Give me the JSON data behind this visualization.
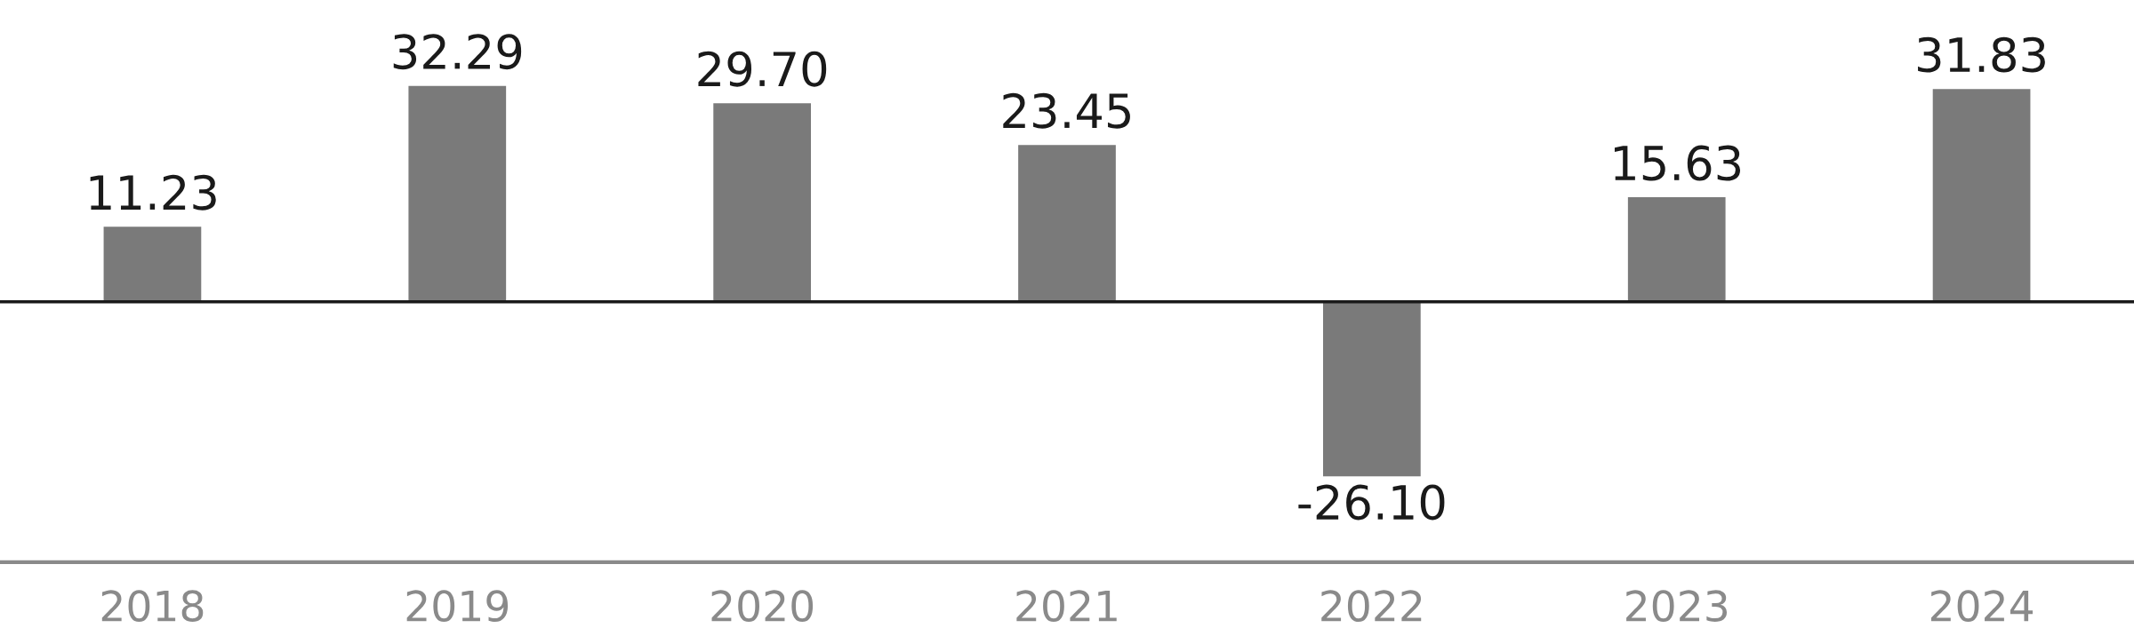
{
  "chart_data": {
    "type": "bar",
    "categories": [
      "2018",
      "2019",
      "2020",
      "2021",
      "2022",
      "2023",
      "2024"
    ],
    "values": [
      11.23,
      32.29,
      29.7,
      23.45,
      -26.1,
      15.63,
      31.83
    ],
    "value_labels": [
      "11.23",
      "32.29",
      "29.70",
      "23.45",
      "-26.10",
      "15.63",
      "31.83"
    ],
    "color": "#7a7a7a",
    "ref_lines": [
      {
        "axis": "y",
        "value": 0,
        "color": "#1a1a1a"
      }
    ],
    "grid": false,
    "legend": false
  }
}
